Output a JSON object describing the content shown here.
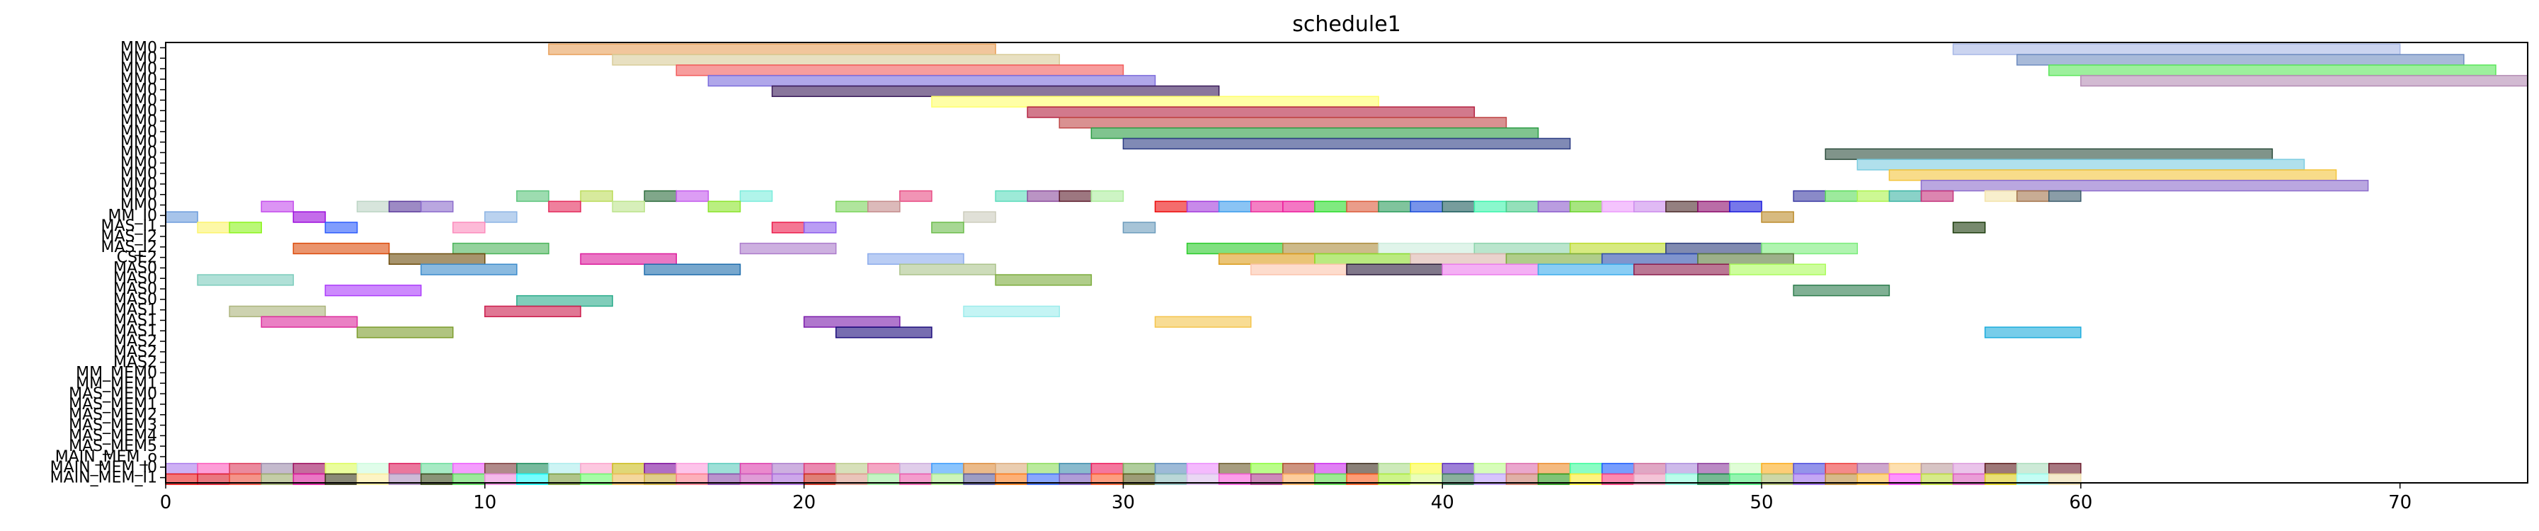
{
  "chart_data": {
    "type": "gantt",
    "title": "schedule1",
    "xlim": [
      0,
      74
    ],
    "xticks": [
      0,
      10,
      20,
      30,
      40,
      50,
      60,
      70
    ],
    "tick_labels": [
      "0",
      "10",
      "20",
      "30",
      "40",
      "50",
      "60",
      "70"
    ],
    "rows": [
      "MM0",
      "MM0",
      "MM0",
      "MM0",
      "MM0",
      "MM0",
      "MM0",
      "MM0",
      "MM0",
      "MM0",
      "MM0",
      "MM0",
      "MM0",
      "MM0",
      "MM0",
      "MM0",
      "MM_I0",
      "MAS_I1",
      "MAS_I2",
      "MAS_I2",
      "CSE2",
      "MAS0",
      "MAS0",
      "MAS0",
      "MAS0",
      "MAS1",
      "MAS1",
      "MAS1",
      "MAS2",
      "MAS2",
      "MAS2",
      "MM_MEM0",
      "MM_MEM1",
      "MAS_MEM0",
      "MAS_MEM1",
      "MAS_MEM2",
      "MAS_MEM3",
      "MAS_MEM4",
      "MAS_MEM5",
      "MAIN_MEM_o",
      "MAIN_MEM_I0",
      "MAIN_MEM_I1"
    ],
    "tasks": [
      {
        "row": 0,
        "start": 12,
        "end": 26,
        "color": "#e8a05a"
      },
      {
        "row": 0,
        "start": 56,
        "end": 70,
        "color": "#a8b8e6"
      },
      {
        "row": 1,
        "start": 14,
        "end": 28,
        "color": "#d8cc98"
      },
      {
        "row": 1,
        "start": 58,
        "end": 72,
        "color": "#6e8cc0"
      },
      {
        "row": 2,
        "start": 16,
        "end": 30,
        "color": "#f25c5c"
      },
      {
        "row": 2,
        "start": 59,
        "end": 73,
        "color": "#5ce65c"
      },
      {
        "row": 3,
        "start": 17,
        "end": 31,
        "color": "#7c6cdc"
      },
      {
        "row": 3,
        "start": 60,
        "end": 74,
        "color": "#b48cb4"
      },
      {
        "row": 4,
        "start": 19,
        "end": 33,
        "color": "#3a1a5a"
      },
      {
        "row": 5,
        "start": 24,
        "end": 38,
        "color": "#ffff6a"
      },
      {
        "row": 6,
        "start": 27,
        "end": 41,
        "color": "#b42040"
      },
      {
        "row": 7,
        "start": 28,
        "end": 42,
        "color": "#c04848"
      },
      {
        "row": 8,
        "start": 29,
        "end": 43,
        "color": "#2c9c44"
      },
      {
        "row": 9,
        "start": 30,
        "end": 44,
        "color": "#2c3c84"
      },
      {
        "row": 10,
        "start": 52,
        "end": 66,
        "color": "#2c4c3c"
      },
      {
        "row": 11,
        "start": 53,
        "end": 67,
        "color": "#7ccce0"
      },
      {
        "row": 12,
        "start": 54,
        "end": 68,
        "color": "#f4c43c"
      },
      {
        "row": 13,
        "start": 55,
        "end": 69,
        "color": "#8c6ccc"
      },
      {
        "row": 14,
        "start": 11,
        "end": 12,
        "color": "#5cc47c"
      },
      {
        "row": 14,
        "start": 13,
        "end": 14,
        "color": "#bcdc5c"
      },
      {
        "row": 14,
        "start": 15,
        "end": 16,
        "color": "#2c6c3c"
      },
      {
        "row": 14,
        "start": 16,
        "end": 17,
        "color": "#c45cec"
      },
      {
        "row": 14,
        "start": 18,
        "end": 19,
        "color": "#7cecdc"
      },
      {
        "row": 14,
        "start": 23,
        "end": 24,
        "color": "#e84c84"
      },
      {
        "row": 14,
        "start": 26,
        "end": 27,
        "color": "#5cdcbc"
      },
      {
        "row": 14,
        "start": 27,
        "end": 28,
        "color": "#8c4c9c"
      },
      {
        "row": 14,
        "start": 28,
        "end": 29,
        "color": "#5c1c2c"
      },
      {
        "row": 14,
        "start": 29,
        "end": 30,
        "color": "#acec9c"
      },
      {
        "row": 14,
        "start": 51,
        "end": 52,
        "color": "#3c3ca4"
      },
      {
        "row": 14,
        "start": 52,
        "end": 53,
        "color": "#5cdc5c"
      },
      {
        "row": 14,
        "start": 53,
        "end": 54,
        "color": "#acf44c"
      },
      {
        "row": 14,
        "start": 54,
        "end": 55,
        "color": "#3cb4a4"
      },
      {
        "row": 14,
        "start": 55,
        "end": 56,
        "color": "#c4347c"
      },
      {
        "row": 14,
        "start": 57,
        "end": 58,
        "color": "#f4e4ac"
      },
      {
        "row": 14,
        "start": 58,
        "end": 59,
        "color": "#a4744c"
      },
      {
        "row": 14,
        "start": 59,
        "end": 60,
        "color": "#3c5c6c"
      },
      {
        "row": 15,
        "start": 3,
        "end": 4,
        "color": "#c44cec"
      },
      {
        "row": 15,
        "start": 6,
        "end": 7,
        "color": "#bcd4c4"
      },
      {
        "row": 15,
        "start": 7,
        "end": 8,
        "color": "#5c3c9c"
      },
      {
        "row": 15,
        "start": 8,
        "end": 9,
        "color": "#8c6ccc"
      },
      {
        "row": 15,
        "start": 12,
        "end": 13,
        "color": "#e42c5c"
      },
      {
        "row": 15,
        "start": 14,
        "end": 15,
        "color": "#bce48c"
      },
      {
        "row": 15,
        "start": 17,
        "end": 18,
        "color": "#8ce42c"
      },
      {
        "row": 15,
        "start": 21,
        "end": 22,
        "color": "#7cd45c"
      },
      {
        "row": 15,
        "start": 22,
        "end": 23,
        "color": "#c48c8c"
      },
      {
        "row": 15,
        "start": 31,
        "end": 32,
        "color": "#ec0c0c"
      },
      {
        "row": 15,
        "start": 32,
        "end": 33,
        "color": "#a43cdc"
      },
      {
        "row": 15,
        "start": 33,
        "end": 34,
        "color": "#3c9cec"
      },
      {
        "row": 15,
        "start": 34,
        "end": 35,
        "color": "#ec2c9c"
      },
      {
        "row": 15,
        "start": 35,
        "end": 36,
        "color": "#ec1c9c"
      },
      {
        "row": 15,
        "start": 36,
        "end": 37,
        "color": "#2cdc2c"
      },
      {
        "row": 15,
        "start": 37,
        "end": 38,
        "color": "#dc5c3c"
      },
      {
        "row": 15,
        "start": 38,
        "end": 39,
        "color": "#2c9c5c"
      },
      {
        "row": 15,
        "start": 39,
        "end": 40,
        "color": "#1c4cdc"
      },
      {
        "row": 15,
        "start": 40,
        "end": 41,
        "color": "#1c5c5c"
      },
      {
        "row": 15,
        "start": 41,
        "end": 42,
        "color": "#3cf4ac"
      },
      {
        "row": 15,
        "start": 42,
        "end": 43,
        "color": "#4ccc8c"
      },
      {
        "row": 15,
        "start": 43,
        "end": 44,
        "color": "#8c5ccc"
      },
      {
        "row": 15,
        "start": 44,
        "end": 45,
        "color": "#6cd42c"
      },
      {
        "row": 15,
        "start": 45,
        "end": 46,
        "color": "#ec9cfc"
      },
      {
        "row": 15,
        "start": 46,
        "end": 47,
        "color": "#cc8cec"
      },
      {
        "row": 15,
        "start": 47,
        "end": 48,
        "color": "#4c2c2c"
      },
      {
        "row": 15,
        "start": 48,
        "end": 49,
        "color": "#8c0c6c"
      },
      {
        "row": 15,
        "start": 49,
        "end": 50,
        "color": "#1c1cdc"
      },
      {
        "row": 16,
        "start": 0,
        "end": 1,
        "color": "#6c9cdc"
      },
      {
        "row": 16,
        "start": 4,
        "end": 5,
        "color": "#9c0cdc"
      },
      {
        "row": 16,
        "start": 10,
        "end": 11,
        "color": "#8cb4e4"
      },
      {
        "row": 16,
        "start": 25,
        "end": 26,
        "color": "#ccccbc"
      },
      {
        "row": 16,
        "start": 50,
        "end": 51,
        "color": "#bc8c2c"
      },
      {
        "row": 17,
        "start": 1,
        "end": 2,
        "color": "#fcf46c"
      },
      {
        "row": 17,
        "start": 2,
        "end": 3,
        "color": "#8cf41c"
      },
      {
        "row": 17,
        "start": 5,
        "end": 6,
        "color": "#2c5cfc"
      },
      {
        "row": 17,
        "start": 9,
        "end": 10,
        "color": "#fc8cbc"
      },
      {
        "row": 17,
        "start": 19,
        "end": 20,
        "color": "#ec1c4c"
      },
      {
        "row": 17,
        "start": 20,
        "end": 21,
        "color": "#8c5cec"
      },
      {
        "row": 17,
        "start": 24,
        "end": 25,
        "color": "#6cbc4c"
      },
      {
        "row": 17,
        "start": 30,
        "end": 31,
        "color": "#6c9cbc"
      },
      {
        "row": 17,
        "start": 56,
        "end": 57,
        "color": "#1c3c0c"
      },
      {
        "row": 19,
        "start": 4,
        "end": 7,
        "color": "#dc4c0c"
      },
      {
        "row": 19,
        "start": 9,
        "end": 12,
        "color": "#4cb45c"
      },
      {
        "row": 19,
        "start": 18,
        "end": 21,
        "color": "#ac7ccc"
      },
      {
        "row": 19,
        "start": 32,
        "end": 35,
        "color": "#2ccc2c"
      },
      {
        "row": 19,
        "start": 35,
        "end": 38,
        "color": "#ac8c3c"
      },
      {
        "row": 19,
        "start": 38,
        "end": 41,
        "color": "#ccecdc"
      },
      {
        "row": 19,
        "start": 41,
        "end": 44,
        "color": "#8cd4ac"
      },
      {
        "row": 19,
        "start": 44,
        "end": 47,
        "color": "#bcdc2c"
      },
      {
        "row": 19,
        "start": 47,
        "end": 50,
        "color": "#2c3c7c"
      },
      {
        "row": 19,
        "start": 50,
        "end": 53,
        "color": "#7cec7c"
      },
      {
        "row": 20,
        "start": 7,
        "end": 10,
        "color": "#6c4c0c"
      },
      {
        "row": 20,
        "start": 13,
        "end": 16,
        "color": "#dc1c9c"
      },
      {
        "row": 20,
        "start": 22,
        "end": 25,
        "color": "#8cacec"
      },
      {
        "row": 20,
        "start": 33,
        "end": 36,
        "color": "#dc9c1c"
      },
      {
        "row": 20,
        "start": 36,
        "end": 39,
        "color": "#8cdc2c"
      },
      {
        "row": 20,
        "start": 39,
        "end": 42,
        "color": "#dcb4ac"
      },
      {
        "row": 20,
        "start": 42,
        "end": 45,
        "color": "#7cac3c"
      },
      {
        "row": 20,
        "start": 45,
        "end": 48,
        "color": "#2c4cac"
      },
      {
        "row": 20,
        "start": 48,
        "end": 51,
        "color": "#5c7c3c"
      },
      {
        "row": 21,
        "start": 8,
        "end": 11,
        "color": "#3c8ccc"
      },
      {
        "row": 21,
        "start": 15,
        "end": 18,
        "color": "#1c6cac"
      },
      {
        "row": 21,
        "start": 23,
        "end": 26,
        "color": "#acc48c"
      },
      {
        "row": 21,
        "start": 34,
        "end": 37,
        "color": "#fcc4ac"
      },
      {
        "row": 21,
        "start": 37,
        "end": 40,
        "color": "#2c1c3c"
      },
      {
        "row": 21,
        "start": 40,
        "end": 43,
        "color": "#ec7cec"
      },
      {
        "row": 21,
        "start": 43,
        "end": 46,
        "color": "#3cacec"
      },
      {
        "row": 21,
        "start": 46,
        "end": 49,
        "color": "#8c1c4c"
      },
      {
        "row": 21,
        "start": 49,
        "end": 52,
        "color": "#acfc5c"
      },
      {
        "row": 22,
        "start": 1,
        "end": 4,
        "color": "#7cccbc"
      },
      {
        "row": 22,
        "start": 26,
        "end": 29,
        "color": "#7cac3c"
      },
      {
        "row": 23,
        "start": 5,
        "end": 8,
        "color": "#ac3cfc"
      },
      {
        "row": 23,
        "start": 51,
        "end": 54,
        "color": "#2c7c4c"
      },
      {
        "row": 24,
        "start": 11,
        "end": 14,
        "color": "#2cac8c"
      },
      {
        "row": 25,
        "start": 2,
        "end": 5,
        "color": "#acb47c"
      },
      {
        "row": 25,
        "start": 10,
        "end": 13,
        "color": "#cc1c4c"
      },
      {
        "row": 25,
        "start": 25,
        "end": 28,
        "color": "#9cecec"
      },
      {
        "row": 26,
        "start": 3,
        "end": 6,
        "color": "#dc2c9c"
      },
      {
        "row": 26,
        "start": 20,
        "end": 23,
        "color": "#7c1cac"
      },
      {
        "row": 26,
        "start": 31,
        "end": 34,
        "color": "#f4c44c"
      },
      {
        "row": 27,
        "start": 6,
        "end": 9,
        "color": "#7c9c2c"
      },
      {
        "row": 27,
        "start": 21,
        "end": 24,
        "color": "#1c0c7c"
      },
      {
        "row": 27,
        "start": 57,
        "end": 60,
        "color": "#1cacdc"
      }
    ],
    "mem_rows": [
      {
        "row": 40,
        "colors": [
          "#ac7cec",
          "#fc5cbc",
          "#dc3c5c",
          "#9c8cac",
          "#9c0c5c",
          "#dcfc5c",
          "#ccfcdc",
          "#dc1c5c",
          "#6cdc9c",
          "#ec5cfc",
          "#7c3c3c",
          "#1c8c5c",
          "#acecec",
          "#fca4cc",
          "#ccbc1c",
          "#7c0c9c",
          "#fc9cdc",
          "#5cccbc",
          "#dc3cac",
          "#ac7ccc",
          "#dc3c7c",
          "#bccc8c",
          "#ec6c9c",
          "#ccacdc",
          "#3c9cfc",
          "#dc8c3c",
          "#dcac7c",
          "#8cdc5c",
          "#3c8cac",
          "#ec1c5c",
          "#7cac5c",
          "#5c8cbc",
          "#ec8cfc",
          "#6c5c2c",
          "#8cfc3c",
          "#ac4c2c",
          "#cc2cec",
          "#3c2c1c",
          "#acdc8c",
          "#fcfc3c",
          "#5c2cbc",
          "#bcfc8c",
          "#dc6cac",
          "#ec8c2c",
          "#3cfc9c",
          "#1c5cfc",
          "#cc6c9c",
          "#ac8cdc",
          "#8c3c9c",
          "#ccfcbc",
          "#fcac1c",
          "#4c4cdc",
          "#ec3c3c",
          "#ac6cac",
          "#fccc7c",
          "#bc9c9c",
          "#dc9cdc",
          "#5c1c1c",
          "#acdcbc",
          "#6c1c2c"
        ]
      },
      {
        "row": 41,
        "colors": [
          "#ec1c1c",
          "#dc1c2c",
          "#ec4c3c",
          "#9cac6c",
          "#dc1c9c",
          "#3c3c1c",
          "#fcec9c",
          "#ac8cbc",
          "#3c4c1c",
          "#5cdc5c",
          "#ec8cdc",
          "#1cfcfc",
          "#7c9c3c",
          "#6cfc6c",
          "#ecbc5c",
          "#ccac3c",
          "#fc7c8c",
          "#8c4cac",
          "#cc5cbc",
          "#ac6cdc",
          "#cc2c1c",
          "#dc9c8c",
          "#9cec9c",
          "#ec5cac",
          "#acec8c",
          "#5c5c9c",
          "#fc7c1c",
          "#3c6cfc",
          "#7c5cbc",
          "#fc5c2c",
          "#5c5c1c",
          "#8cbcbc",
          "#dcbcec",
          "#fc5cdc",
          "#ac3c8c",
          "#fcac5c",
          "#5cdc4c",
          "#fc5c1c",
          "#acec3c",
          "#dcfc8c",
          "#3c7c5c",
          "#bc9cfc",
          "#cc7c6c",
          "#2c9c1c",
          "#fcec2c",
          "#fc3c7c",
          "#ec9cbc",
          "#8cfcdc",
          "#1c8c4c",
          "#4cec7c",
          "#acbc6c",
          "#9c6cec",
          "#bc8c3c",
          "#fcbc3c",
          "#fc4cfc",
          "#bcdc3c",
          "#dc5cbc",
          "#dccc1c",
          "#9cfcec",
          "#ecdcac"
        ]
      }
    ]
  }
}
